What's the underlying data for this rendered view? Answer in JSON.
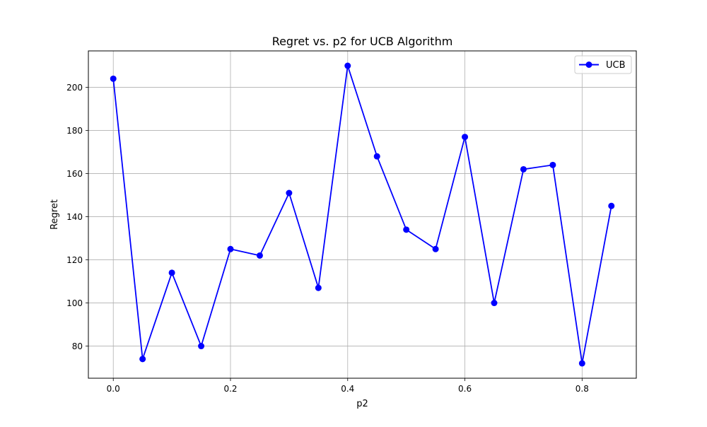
{
  "chart_data": {
    "type": "line",
    "title": "Regret vs. p2 for UCB Algorithm",
    "xlabel": "p2",
    "ylabel": "Regret",
    "xlim": [
      -0.0425,
      0.8925
    ],
    "ylim": [
      65.1,
      216.9
    ],
    "xticks": [
      0.0,
      0.2,
      0.4,
      0.6,
      0.8
    ],
    "xtick_labels": [
      "0.0",
      "0.2",
      "0.4",
      "0.6",
      "0.8"
    ],
    "yticks": [
      80,
      100,
      120,
      140,
      160,
      180,
      200
    ],
    "ytick_labels": [
      "80",
      "100",
      "120",
      "140",
      "160",
      "180",
      "200"
    ],
    "grid": true,
    "legend_position": "top-right",
    "x": [
      0.0,
      0.05,
      0.1,
      0.15,
      0.2,
      0.25,
      0.3,
      0.35,
      0.4,
      0.45,
      0.5,
      0.55,
      0.6,
      0.65,
      0.7,
      0.75,
      0.8,
      0.85
    ],
    "series": [
      {
        "name": "UCB",
        "color": "#0000ff",
        "marker": "circle",
        "values": [
          204,
          74,
          114,
          80,
          125,
          122,
          151,
          107,
          210,
          168,
          134,
          125,
          177,
          100,
          162,
          164,
          72,
          145
        ]
      }
    ]
  }
}
